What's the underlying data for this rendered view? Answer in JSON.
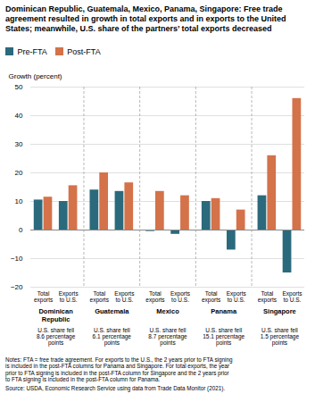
{
  "chart_data": {
    "type": "bar",
    "title": "Dominican Republic, Guatemala, Mexico, Panama, Singapore: Free trade agreement resulted in growth in total exports and in exports to the United States; meanwhile, U.S. share of the partners’ total exports decreased",
    "ylabel": "Growth (percent)",
    "groups": [
      "Dominican\nRepublic",
      "Guatemala",
      "Mexico",
      "Panama",
      "Singapore"
    ],
    "group_notes": [
      "U.S. share fell\n8.6 percentage\npoints",
      "U.S. share fell\n6.1 percentage\npoints",
      "U.S. share fell\n8.7 percentage\npoints",
      "U.S. share fell\n15.1 percentage\npoints",
      "U.S. share fell\n1.5 percentage\npoints"
    ],
    "categories": [
      "Total\nexports",
      "Exports\nto U.S.",
      "Total\nexports",
      "Exports\nto U.S.",
      "Total\nexports",
      "Exports\nto U.S.",
      "Total\nexports",
      "Exports\nto U.S.",
      "Total\nexports",
      "Exports\nto U.S."
    ],
    "series": [
      {
        "name": "Pre-FTA",
        "color": "#2B6A7C",
        "values": [
          10.5,
          10.0,
          14.0,
          13.5,
          -0.5,
          -1.5,
          10.0,
          -7.0,
          12.0,
          -15.0
        ]
      },
      {
        "name": "Post-FTA",
        "color": "#D4724A",
        "values": [
          11.5,
          15.5,
          20.0,
          16.5,
          13.5,
          12.0,
          11.0,
          7.0,
          26.0,
          46.0
        ]
      }
    ],
    "ylim": [
      -20,
      50
    ],
    "yticks": [
      -20,
      -10,
      0,
      10,
      20,
      30,
      40,
      50
    ],
    "grid": true,
    "notes": "Notes: FTA = free trade agreement. For exports to the U.S., the 2 years prior to FTA signing\nis included in the post-FTA columns for Panama and Singapore. For total exports, the year\nprior to FTA signing is included in the post-FTA column for Singapore and the 2 years prior\nto FTA signing is included in the post-FTA column for Panama.",
    "source": "Source: USDA, Economic Research Service using data from Trade Data Monitor (2021)."
  }
}
